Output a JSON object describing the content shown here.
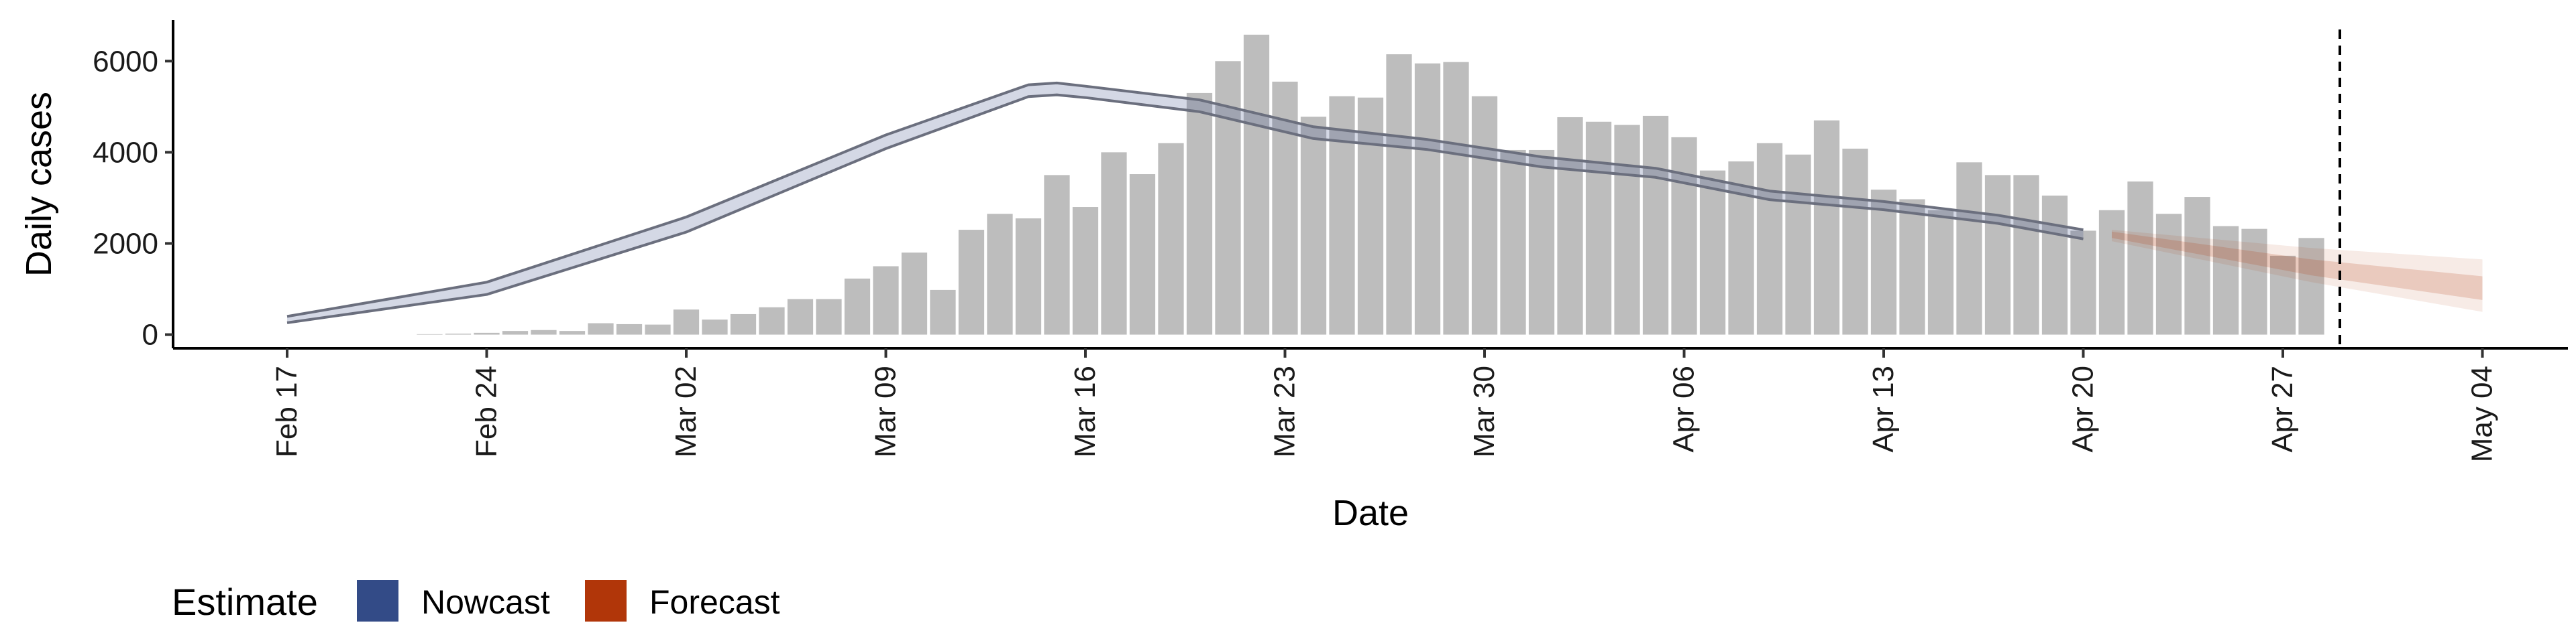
{
  "chart_data": {
    "type": "bar",
    "xlabel": "Date",
    "ylabel": "Daily cases",
    "ylim": [
      -300,
      6900
    ],
    "yticks": [
      "0",
      "2000",
      "4000",
      "6000"
    ],
    "xlim": [
      "2020-02-13",
      "2020-05-07"
    ],
    "xticks": [
      {
        "date": "2020-02-17",
        "label": "Feb 17"
      },
      {
        "date": "2020-02-24",
        "label": "Feb 24"
      },
      {
        "date": "2020-03-02",
        "label": "Mar 02"
      },
      {
        "date": "2020-03-09",
        "label": "Mar 09"
      },
      {
        "date": "2020-03-16",
        "label": "Mar 16"
      },
      {
        "date": "2020-03-23",
        "label": "Mar 23"
      },
      {
        "date": "2020-03-30",
        "label": "Mar 30"
      },
      {
        "date": "2020-04-06",
        "label": "Apr 06"
      },
      {
        "date": "2020-04-13",
        "label": "Apr 13"
      },
      {
        "date": "2020-04-20",
        "label": "Apr 20"
      },
      {
        "date": "2020-04-27",
        "label": "Apr 27"
      },
      {
        "date": "2020-05-04",
        "label": "May 04"
      }
    ],
    "reported_cases": {
      "start_date": "2020-02-22",
      "values": [
        10,
        20,
        40,
        80,
        100,
        80,
        250,
        230,
        220,
        550,
        330,
        450,
        600,
        780,
        780,
        1230,
        1500,
        1800,
        980,
        2300,
        2650,
        2550,
        3500,
        2800,
        4000,
        3520,
        4200,
        5300,
        6000,
        6580,
        5550,
        4780,
        5230,
        5200,
        6150,
        5950,
        5980,
        5230,
        4050,
        4050,
        4770,
        4670,
        4600,
        4800,
        4330,
        3600,
        3800,
        4200,
        3950,
        4700,
        4080,
        3180,
        2970,
        2730,
        3780,
        3500,
        3500,
        3050,
        2280,
        2730,
        3360,
        2650,
        3020,
        2380,
        2320,
        1730,
        2120
      ]
    },
    "nowcast": {
      "dates": [
        "2020-02-17",
        "2020-02-24",
        "2020-03-02",
        "2020-03-09",
        "2020-03-14",
        "2020-03-15",
        "2020-03-16",
        "2020-03-20",
        "2020-03-24",
        "2020-03-28",
        "2020-04-01",
        "2020-04-05",
        "2020-04-09",
        "2020-04-13",
        "2020-04-17",
        "2020-04-20"
      ],
      "upper": [
        400,
        1150,
        2580,
        4380,
        5480,
        5520,
        5450,
        5150,
        4560,
        4280,
        3900,
        3650,
        3150,
        2920,
        2620,
        2300
      ],
      "lower": [
        260,
        880,
        2250,
        4080,
        5220,
        5260,
        5200,
        4890,
        4300,
        4060,
        3680,
        3450,
        2960,
        2740,
        2440,
        2100
      ],
      "color": "#3c4f89"
    },
    "forecast": {
      "dates": [
        "2020-04-21",
        "2020-04-28",
        "2020-05-04"
      ],
      "median": [
        2200,
        1500,
        1000
      ],
      "outer_upper": [
        2300,
        1900,
        1650
      ],
      "outer_lower": [
        2050,
        1150,
        500
      ],
      "inner_upper": [
        2260,
        1650,
        1280
      ],
      "inner_lower": [
        2120,
        1300,
        760
      ],
      "color": "#b3380a"
    },
    "vline_date": "2020-04-29",
    "legend": {
      "title": "Estimate",
      "position": "bottom-left",
      "items": [
        {
          "label": "Nowcast",
          "color": "#334b87"
        },
        {
          "label": "Forecast",
          "color": "#b13609"
        }
      ]
    },
    "grid": false
  }
}
